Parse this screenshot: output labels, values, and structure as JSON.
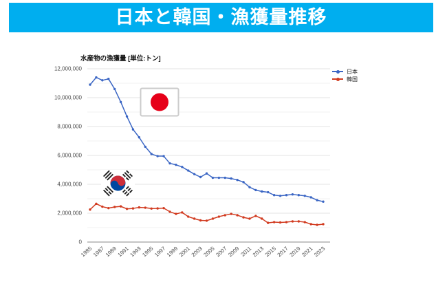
{
  "header": {
    "title": "日本と韓国・漁獲量推移",
    "background_color": "#00AEEF",
    "text_color": "#FFFFFF"
  },
  "chart": {
    "title": "水産物の漁獲量 [単位:トン]"
  },
  "legend": {
    "items": [
      {
        "id": "japan",
        "label": "日本",
        "color": "#3B66C4"
      },
      {
        "id": "korea",
        "label": "韓国",
        "color": "#D13A1F"
      }
    ]
  },
  "flags": {
    "japan": {
      "name": "japan-flag",
      "field": "#FFFFFF",
      "red": "#E60019",
      "border": "#CBCBCB"
    },
    "korea": {
      "name": "korea-flag",
      "field": "#FFFFFF",
      "red": "#CD2E3A",
      "blue": "#0047A0",
      "bars": "#1E1E1E"
    }
  },
  "chart_data": {
    "type": "line",
    "title": "水産物の漁獲量 [単位:トン]",
    "unit": "トン",
    "grid": true,
    "legend_position": "top-right",
    "ylim": [
      0,
      12000000
    ],
    "y_ticks": [
      0,
      2000000,
      4000000,
      6000000,
      8000000,
      10000000,
      12000000
    ],
    "y_tick_labels": [
      "0",
      "2,000,000",
      "4,000,000",
      "6,000,000",
      "8,000,000",
      "10,000,000",
      "12,000,000"
    ],
    "x": [
      1985,
      1986,
      1987,
      1988,
      1989,
      1990,
      1991,
      1992,
      1993,
      1994,
      1995,
      1996,
      1997,
      1998,
      1999,
      2000,
      2001,
      2002,
      2003,
      2004,
      2005,
      2006,
      2007,
      2008,
      2009,
      2010,
      2011,
      2012,
      2013,
      2014,
      2015,
      2016,
      2017,
      2018,
      2019,
      2020,
      2021,
      2022,
      2023
    ],
    "x_tick_labels": [
      "1985",
      "1987",
      "1989",
      "1991",
      "1993",
      "1995",
      "1997",
      "1999",
      "2001",
      "2003",
      "2005",
      "2007",
      "2009",
      "2011",
      "2013",
      "2015",
      "2017",
      "2019",
      "2021",
      "2023"
    ],
    "series": [
      {
        "name": "日本",
        "color": "#3B66C4",
        "values": [
          10900000,
          11400000,
          11200000,
          11300000,
          10600000,
          9700000,
          8700000,
          7800000,
          7250000,
          6600000,
          6100000,
          5950000,
          5950000,
          5450000,
          5350000,
          5200000,
          4950000,
          4700000,
          4500000,
          4750000,
          4450000,
          4450000,
          4450000,
          4400000,
          4300000,
          4150000,
          3800000,
          3600000,
          3500000,
          3450000,
          3250000,
          3200000,
          3250000,
          3300000,
          3250000,
          3200000,
          3100000,
          2900000,
          2800000
        ]
      },
      {
        "name": "韓国",
        "color": "#D13A1F",
        "values": [
          2250000,
          2650000,
          2450000,
          2350000,
          2430000,
          2470000,
          2300000,
          2330000,
          2400000,
          2380000,
          2320000,
          2330000,
          2350000,
          2100000,
          1950000,
          2050000,
          1760000,
          1620000,
          1500000,
          1480000,
          1620000,
          1760000,
          1860000,
          1950000,
          1860000,
          1710000,
          1620000,
          1810000,
          1620000,
          1330000,
          1380000,
          1360000,
          1380000,
          1430000,
          1430000,
          1380000,
          1240000,
          1190000,
          1240000
        ]
      }
    ]
  }
}
